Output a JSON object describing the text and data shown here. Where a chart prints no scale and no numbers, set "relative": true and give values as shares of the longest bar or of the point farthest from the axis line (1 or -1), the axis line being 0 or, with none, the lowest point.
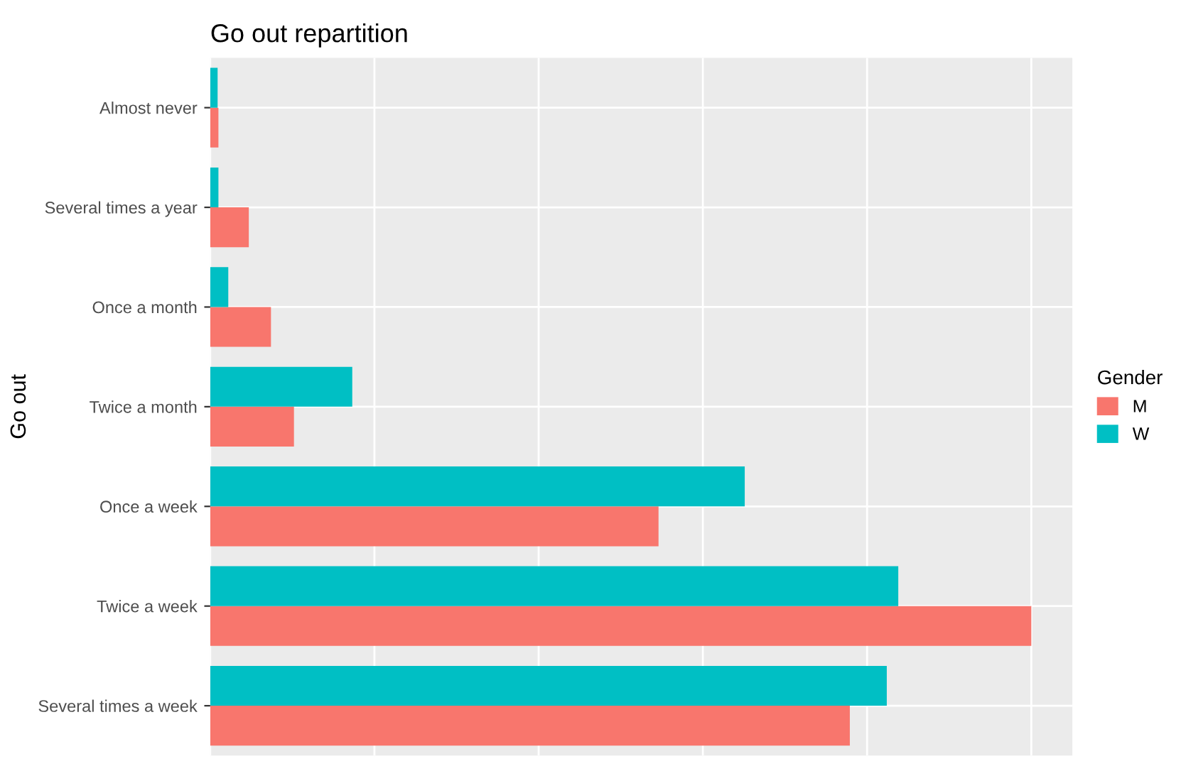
{
  "chart_data": {
    "type": "bar",
    "orientation": "horizontal",
    "relative": true,
    "title": "Go out repartition",
    "ylabel": "Go out",
    "legend_title": "Gender",
    "legend": "right",
    "grid": true,
    "categories": [
      "Almost never",
      "Several times a year",
      "Once a month",
      "Twice a month",
      "Once a week",
      "Twice a week",
      "Several times a week"
    ],
    "series": [
      {
        "name": "M",
        "color": "#f8766d",
        "values": [
          0.01,
          0.047,
          0.074,
          0.102,
          0.546,
          1,
          0.779
        ]
      },
      {
        "name": "W",
        "color": "#00bfc4",
        "values": [
          0.009,
          0.01,
          0.022,
          0.173,
          0.651,
          0.838,
          0.824
        ]
      }
    ]
  }
}
